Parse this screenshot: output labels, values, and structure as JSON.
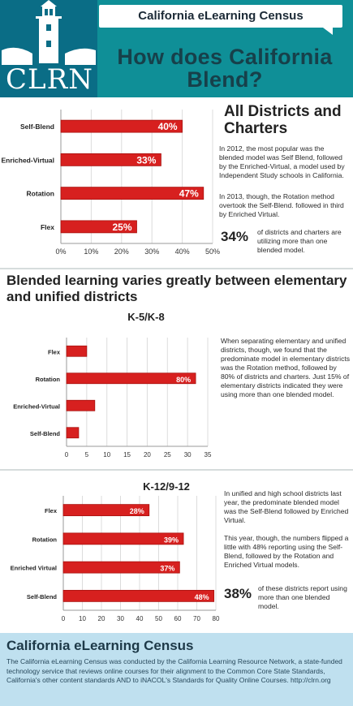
{
  "header": {
    "logo_text": "CLRN",
    "banner": "California eLearning Census",
    "headline": "How does California Blend?"
  },
  "section1": {
    "title": "All Districts and Charters",
    "para1": "In 2012, the most popular was the blended model was Self Blend, followed by the Enriched-Virtual, a model used by Independent Study schools in California.",
    "para2": "In 2013, though, the Rotation method overtook the Self-Blend. followed in third by Enriched Virtual.",
    "stat_value": "34%",
    "stat_text": "of districts and charters are utilizing more than one blended model."
  },
  "section2": {
    "title": "Blended learning varies greatly between elementary and unified districts",
    "subtitle": "K-5/K-8",
    "para": "When separating elementary and unified districts, though, we found that the predominate model in elementary districts was the Rotation method, followed by 80% of districts and charters. Just 15% of elementary districts indicated they were using more than one blended model."
  },
  "section3": {
    "subtitle": "K-12/9-12",
    "para1": "In unified and high school districts last year, the predominate blended model was the Self-Blend followed by Enriched Virtual.",
    "para2": "This year, though, the numbers flipped a little with 48% reporting using the Self-Blend, followed by the Rotation and Enriched Virtual models.",
    "stat_value": "38%",
    "stat_text": "of these districts report using more than one blended model."
  },
  "footer": {
    "title": "California eLearning Census",
    "body": "The California eLearning Census was conducted by the California Learning Resource Network, a state-funded technology service that reviews online courses for their alignment to the Common Core State Standards, California's other content standards AND to iNACOL's Standards for Quality Online Courses. http://clrn.org"
  },
  "colors": {
    "bar": "#d7201f",
    "bar_dark": "#a8120f",
    "teal": "#0f8f97",
    "logo_blue": "#0a6d86",
    "footer_bg": "#bfe0ef"
  },
  "chart_data": [
    {
      "type": "bar",
      "orientation": "horizontal",
      "categories": [
        "Self-Blend",
        "Enriched-Virtual",
        "Rotation",
        "Flex"
      ],
      "values": [
        40,
        33,
        47,
        25
      ],
      "data_labels": [
        "40%",
        "33%",
        "47%",
        "25%"
      ],
      "xlim": [
        0,
        50
      ],
      "x_ticks": [
        "0%",
        "10%",
        "20%",
        "30%",
        "40%",
        "50%"
      ],
      "grid": true
    },
    {
      "type": "bar",
      "orientation": "horizontal",
      "categories": [
        "Flex",
        "Rotation",
        "Enriched-Virtual",
        "Self-Blend"
      ],
      "values": [
        5,
        32,
        7,
        3
      ],
      "data_labels": [
        "",
        "80%",
        "",
        ""
      ],
      "xlim": [
        0,
        35
      ],
      "x_ticks": [
        "0",
        "5",
        "10",
        "15",
        "20",
        "25",
        "30",
        "35"
      ],
      "grid": true
    },
    {
      "type": "bar",
      "orientation": "horizontal",
      "categories": [
        "Flex",
        "Rotation",
        "Enriched Virtual",
        "Self-Blend"
      ],
      "values": [
        45,
        63,
        61,
        79
      ],
      "data_labels": [
        "28%",
        "39%",
        "37%",
        "48%"
      ],
      "xlim": [
        0,
        80
      ],
      "x_ticks": [
        "0",
        "10",
        "20",
        "30",
        "40",
        "50",
        "60",
        "70",
        "80"
      ],
      "grid": true
    }
  ]
}
